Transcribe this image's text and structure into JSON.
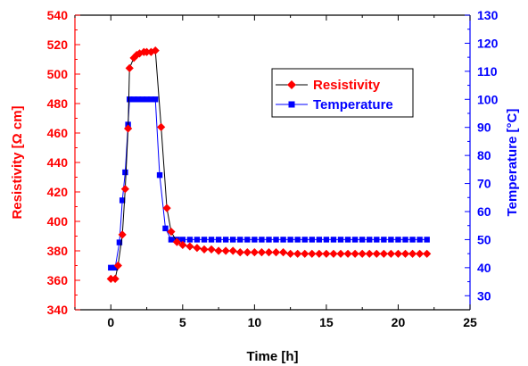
{
  "chart_data": {
    "type": "line",
    "title": "",
    "xlabel": "Time [h]",
    "ylabel_left": "Resistivity [Ω cm]",
    "ylabel_right": "Temperature [°C]",
    "xlim": [
      -2.5,
      25
    ],
    "ylim_left": [
      340,
      540
    ],
    "ylim_right": [
      25,
      130
    ],
    "x_ticks": [
      0,
      5,
      10,
      15,
      20,
      25
    ],
    "y_ticks_left": [
      340,
      360,
      380,
      400,
      420,
      440,
      460,
      480,
      500,
      520,
      540
    ],
    "y_ticks_right": [
      30,
      40,
      50,
      60,
      70,
      80,
      90,
      100,
      110,
      120,
      130
    ],
    "grid": false,
    "legend": "top-right",
    "colors": {
      "resistivity": "#ff0000",
      "temperature": "#0000ff",
      "axis": "#000000"
    },
    "series": [
      {
        "name": "Resistivity",
        "axis": "left",
        "marker": "diamond",
        "points": [
          [
            0.0,
            361
          ],
          [
            0.3,
            361
          ],
          [
            0.5,
            370
          ],
          [
            0.8,
            391
          ],
          [
            1.0,
            422
          ],
          [
            1.2,
            463
          ],
          [
            1.3,
            504
          ],
          [
            1.6,
            511
          ],
          [
            1.8,
            513
          ],
          [
            2.0,
            514
          ],
          [
            2.3,
            515
          ],
          [
            2.5,
            515
          ],
          [
            2.8,
            515
          ],
          [
            3.1,
            516
          ],
          [
            3.5,
            464
          ],
          [
            3.9,
            409
          ],
          [
            4.2,
            393
          ],
          [
            4.6,
            386
          ],
          [
            5.0,
            384
          ],
          [
            5.5,
            383
          ],
          [
            6.0,
            382
          ],
          [
            6.5,
            381
          ],
          [
            7.0,
            381
          ],
          [
            7.5,
            380
          ],
          [
            8.0,
            380
          ],
          [
            8.5,
            380
          ],
          [
            9.0,
            379
          ],
          [
            9.5,
            379
          ],
          [
            10.0,
            379
          ],
          [
            10.5,
            379
          ],
          [
            11.0,
            379
          ],
          [
            11.5,
            379
          ],
          [
            12.0,
            379
          ],
          [
            12.5,
            378
          ],
          [
            13.0,
            378
          ],
          [
            13.5,
            378
          ],
          [
            14.0,
            378
          ],
          [
            14.5,
            378
          ],
          [
            15.0,
            378
          ],
          [
            15.5,
            378
          ],
          [
            16.0,
            378
          ],
          [
            16.5,
            378
          ],
          [
            17.0,
            378
          ],
          [
            17.5,
            378
          ],
          [
            18.0,
            378
          ],
          [
            18.5,
            378
          ],
          [
            19.0,
            378
          ],
          [
            19.5,
            378
          ],
          [
            20.0,
            378
          ],
          [
            20.5,
            378
          ],
          [
            21.0,
            378
          ],
          [
            21.5,
            378
          ],
          [
            22.0,
            378
          ]
        ]
      },
      {
        "name": "Temperature",
        "axis": "right",
        "marker": "square",
        "points": [
          [
            0.0,
            40
          ],
          [
            0.3,
            40
          ],
          [
            0.6,
            49
          ],
          [
            0.8,
            64
          ],
          [
            1.0,
            74
          ],
          [
            1.2,
            91
          ],
          [
            1.3,
            100
          ],
          [
            1.6,
            100
          ],
          [
            1.9,
            100
          ],
          [
            2.2,
            100
          ],
          [
            2.5,
            100
          ],
          [
            2.8,
            100
          ],
          [
            3.1,
            100
          ],
          [
            3.4,
            73
          ],
          [
            3.8,
            54
          ],
          [
            4.2,
            50
          ],
          [
            4.6,
            50
          ],
          [
            5.0,
            50
          ],
          [
            5.5,
            50
          ],
          [
            6.0,
            50
          ],
          [
            6.5,
            50
          ],
          [
            7.0,
            50
          ],
          [
            7.5,
            50
          ],
          [
            8.0,
            50
          ],
          [
            8.5,
            50
          ],
          [
            9.0,
            50
          ],
          [
            9.5,
            50
          ],
          [
            10.0,
            50
          ],
          [
            10.5,
            50
          ],
          [
            11.0,
            50
          ],
          [
            11.5,
            50
          ],
          [
            12.0,
            50
          ],
          [
            12.5,
            50
          ],
          [
            13.0,
            50
          ],
          [
            13.5,
            50
          ],
          [
            14.0,
            50
          ],
          [
            14.5,
            50
          ],
          [
            15.0,
            50
          ],
          [
            15.5,
            50
          ],
          [
            16.0,
            50
          ],
          [
            16.5,
            50
          ],
          [
            17.0,
            50
          ],
          [
            17.5,
            50
          ],
          [
            18.0,
            50
          ],
          [
            18.5,
            50
          ],
          [
            19.0,
            50
          ],
          [
            19.5,
            50
          ],
          [
            20.0,
            50
          ],
          [
            20.5,
            50
          ],
          [
            21.0,
            50
          ],
          [
            21.5,
            50
          ],
          [
            22.0,
            50
          ]
        ]
      }
    ]
  }
}
